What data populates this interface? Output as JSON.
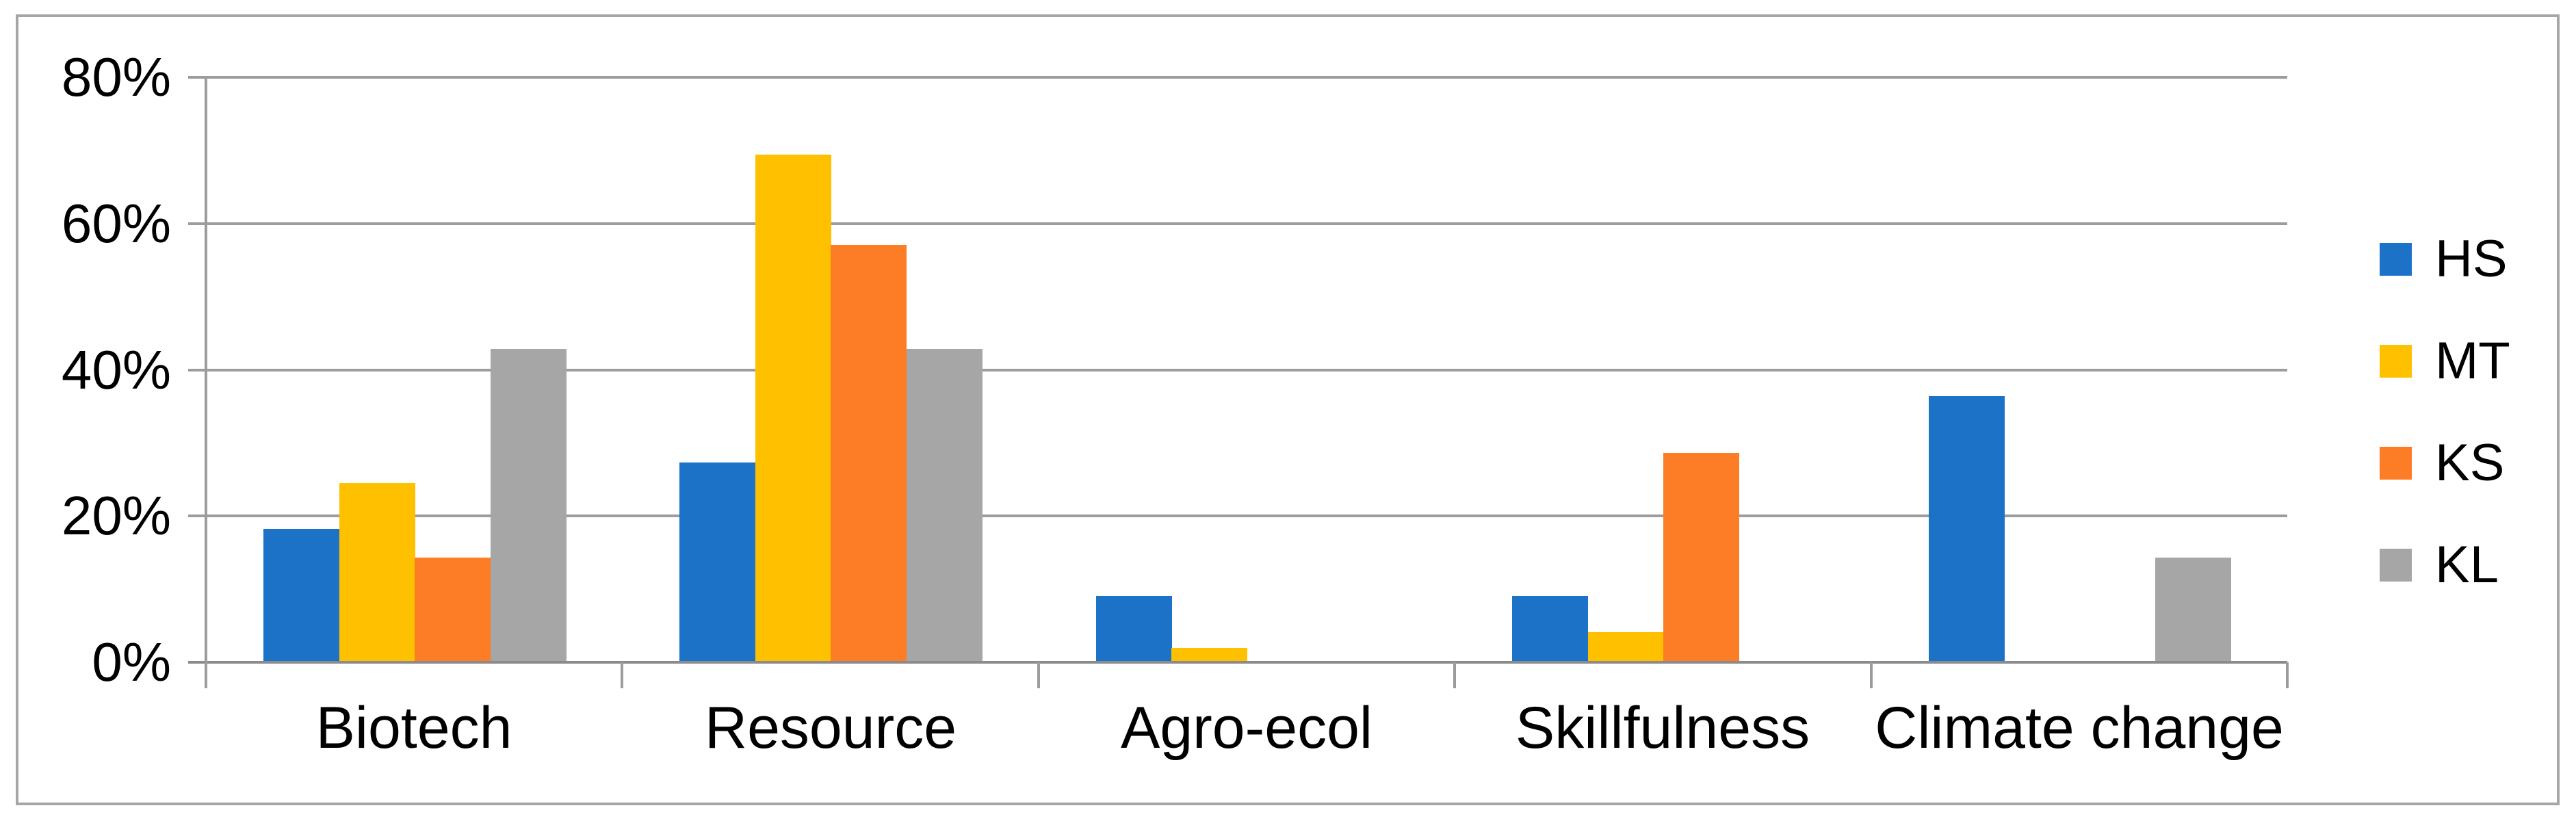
{
  "chart_data": {
    "type": "bar",
    "title": "",
    "xlabel": "",
    "ylabel": "",
    "categories": [
      "Biotech",
      "Resource",
      "Agro-ecol",
      "Skillfulness",
      "Climate change"
    ],
    "series": [
      {
        "name": "HS",
        "color": "#1B72C7",
        "values": [
          18.2,
          27.3,
          9.1,
          9.1,
          36.4
        ]
      },
      {
        "name": "MT",
        "color": "#FFC000",
        "values": [
          24.5,
          69.4,
          2.0,
          4.1,
          0
        ]
      },
      {
        "name": "KS",
        "color": "#FC7D26",
        "values": [
          14.3,
          57.1,
          0,
          28.6,
          0
        ]
      },
      {
        "name": "KL",
        "color": "#A6A6A6",
        "values": [
          42.9,
          42.9,
          0,
          0,
          14.3
        ]
      }
    ],
    "ylim": [
      0,
      80
    ],
    "yticks": [
      {
        "label": "0%",
        "value": 0
      },
      {
        "label": "20%",
        "value": 20
      },
      {
        "label": "40%",
        "value": 40
      },
      {
        "label": "60%",
        "value": 60
      },
      {
        "label": "80%",
        "value": 80
      }
    ],
    "grid": true,
    "legend_position": "right",
    "colors": {
      "gridline": "#9C9C9C",
      "axis": "#8B8B8B",
      "frame": "#A6A6A6",
      "text": "#000000",
      "background": "#FFFFFF"
    }
  }
}
